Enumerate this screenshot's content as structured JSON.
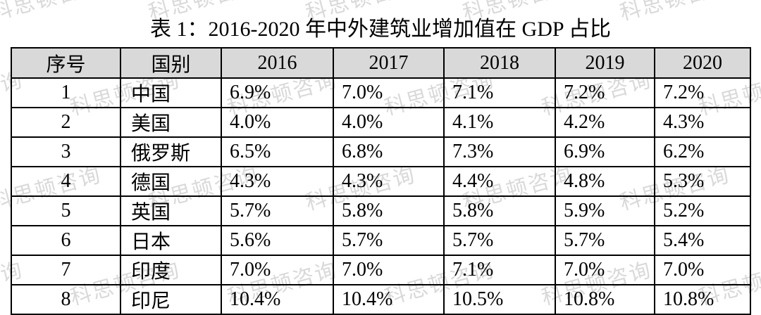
{
  "title": "表 1：2016-2020 年中外建筑业增加值在 GDP 占比",
  "watermark": {
    "text": "科思顿咨询",
    "color": "rgba(155,155,155,0.38)"
  },
  "table": {
    "header_bg": "#d9d9d9",
    "border_color": "#000000",
    "columns": [
      "序号",
      "国别",
      "2016",
      "2017",
      "2018",
      "2019",
      "2020"
    ],
    "rows": [
      [
        "1",
        "中国",
        "6.9%",
        "7.0%",
        "7.1%",
        "7.2%",
        "7.2%"
      ],
      [
        "2",
        "美国",
        "4.0%",
        "4.0%",
        "4.1%",
        "4.2%",
        "4.3%"
      ],
      [
        "3",
        "俄罗斯",
        "6.5%",
        "6.8%",
        "7.3%",
        "6.9%",
        "6.2%"
      ],
      [
        "4",
        "德国",
        "4.3%",
        "4.3%",
        "4.4%",
        "4.8%",
        "5.3%"
      ],
      [
        "5",
        "英国",
        "5.7%",
        "5.8%",
        "5.8%",
        "5.9%",
        "5.2%"
      ],
      [
        "6",
        "日本",
        "5.6%",
        "5.7%",
        "5.7%",
        "5.7%",
        "5.4%"
      ],
      [
        "7",
        "印度",
        "7.0%",
        "7.0%",
        "7.1%",
        "7.0%",
        "7.0%"
      ],
      [
        "8",
        "印尼",
        "10.4%",
        "10.4%",
        "10.5%",
        "10.8%",
        "10.8%"
      ]
    ]
  },
  "chart_data": {
    "type": "table",
    "title": "表 1：2016-2020 年中外建筑业增加值在 GDP 占比",
    "categories": [
      "2016",
      "2017",
      "2018",
      "2019",
      "2020"
    ],
    "unit": "%",
    "series": [
      {
        "name": "中国",
        "values": [
          6.9,
          7.0,
          7.1,
          7.2,
          7.2
        ]
      },
      {
        "name": "美国",
        "values": [
          4.0,
          4.0,
          4.1,
          4.2,
          4.3
        ]
      },
      {
        "name": "俄罗斯",
        "values": [
          6.5,
          6.8,
          7.3,
          6.9,
          6.2
        ]
      },
      {
        "name": "德国",
        "values": [
          4.3,
          4.3,
          4.4,
          4.8,
          5.3
        ]
      },
      {
        "name": "英国",
        "values": [
          5.7,
          5.8,
          5.8,
          5.9,
          5.2
        ]
      },
      {
        "name": "日本",
        "values": [
          5.6,
          5.7,
          5.7,
          5.7,
          5.4
        ]
      },
      {
        "name": "印度",
        "values": [
          7.0,
          7.0,
          7.1,
          7.0,
          7.0
        ]
      },
      {
        "name": "印尼",
        "values": [
          10.4,
          10.4,
          10.5,
          10.8,
          10.8
        ]
      }
    ]
  }
}
